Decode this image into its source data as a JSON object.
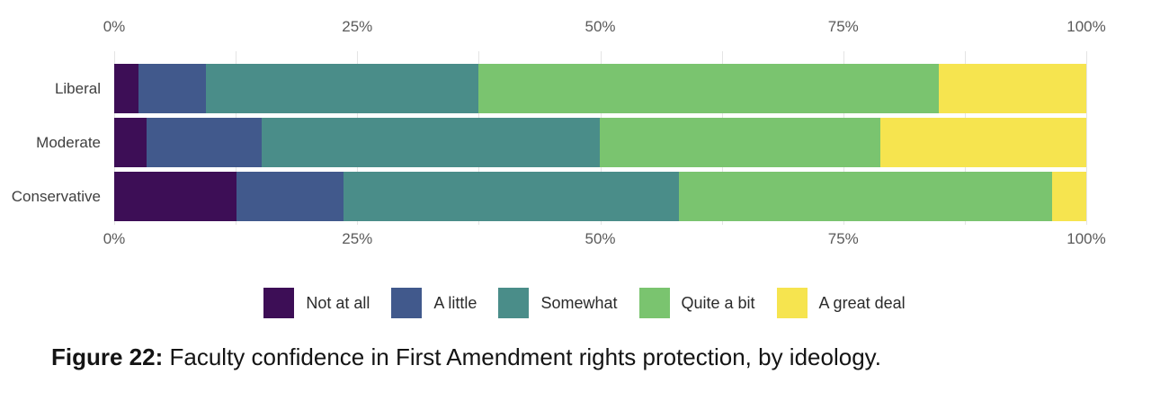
{
  "chart_data": {
    "type": "bar",
    "orientation": "horizontal",
    "stacked": true,
    "unit": "percent",
    "categories": [
      "Liberal",
      "Moderate",
      "Conservative"
    ],
    "series": [
      {
        "name": "Not at all",
        "color": "#3d0e56",
        "values": [
          2.5,
          3.3,
          12.6
        ]
      },
      {
        "name": "A little",
        "color": "#41598c",
        "values": [
          6.9,
          11.9,
          11.0
        ]
      },
      {
        "name": "Somewhat",
        "color": "#4a8d89",
        "values": [
          28.1,
          34.8,
          34.5
        ]
      },
      {
        "name": "Quite a bit",
        "color": "#7ac46f",
        "values": [
          47.3,
          28.8,
          38.4
        ]
      },
      {
        "name": "A great deal",
        "color": "#f6e44f",
        "values": [
          15.2,
          21.2,
          3.5
        ]
      }
    ],
    "x_axis": {
      "tick_labels": [
        "0%",
        "25%",
        "50%",
        "75%",
        "100%"
      ],
      "tick_values": [
        0,
        25,
        50,
        75,
        100
      ],
      "range": [
        0,
        100
      ],
      "gridline_step": 12.5,
      "shown_on_top_and_bottom": true
    },
    "legend_position": "bottom",
    "grid": true
  },
  "caption": {
    "prefix": "Figure 22:",
    "text": "Faculty confidence in First Amendment rights protection, by ideology."
  },
  "colors": {
    "background": "#ffffff",
    "gridline": "#e4e4e4",
    "axis_text": "#5a5a5a",
    "category_text": "#3f3f3f",
    "legend_text": "#2b2b2b",
    "caption_text": "#141414"
  }
}
